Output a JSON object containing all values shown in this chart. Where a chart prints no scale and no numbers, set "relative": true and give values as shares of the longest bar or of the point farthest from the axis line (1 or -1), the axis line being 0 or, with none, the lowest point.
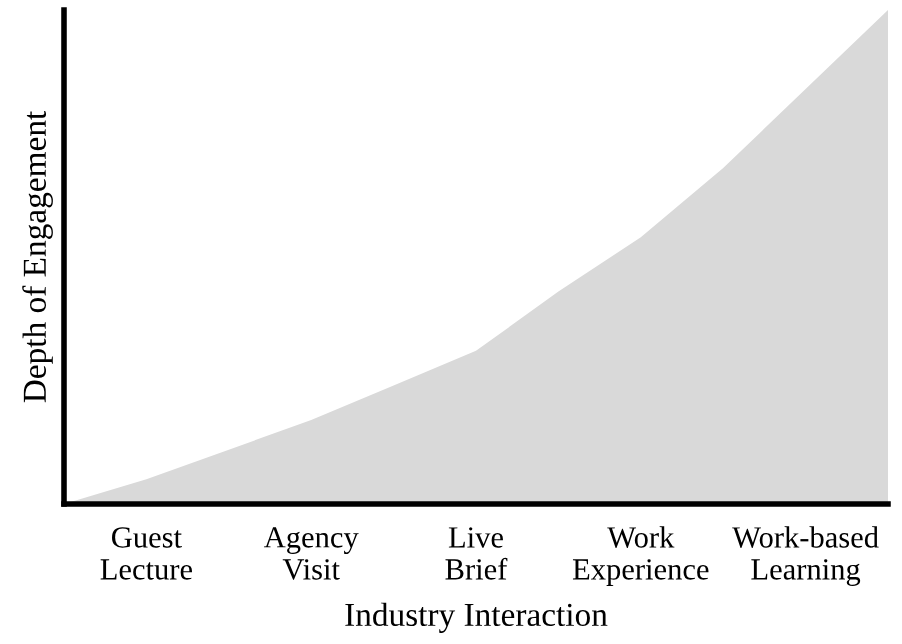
{
  "chart_data": {
    "type": "area",
    "xlabel": "Industry Interaction",
    "ylabel": "Depth of Engagement",
    "relative": true,
    "categories": [
      null,
      "Guest\nLecture",
      null,
      "Agency\nVisit",
      null,
      "Live\nBrief",
      null,
      "Work\nExperience",
      null,
      "Work-based\nLearning",
      null
    ],
    "series": [
      {
        "color": "#d9d9d9",
        "values": [
          0,
          0.05,
          0.11,
          0.17,
          0.24,
          0.31,
          0.43,
          0.54,
          0.68,
          0.84,
          1
        ]
      }
    ],
    "grid": false,
    "legend": false
  }
}
